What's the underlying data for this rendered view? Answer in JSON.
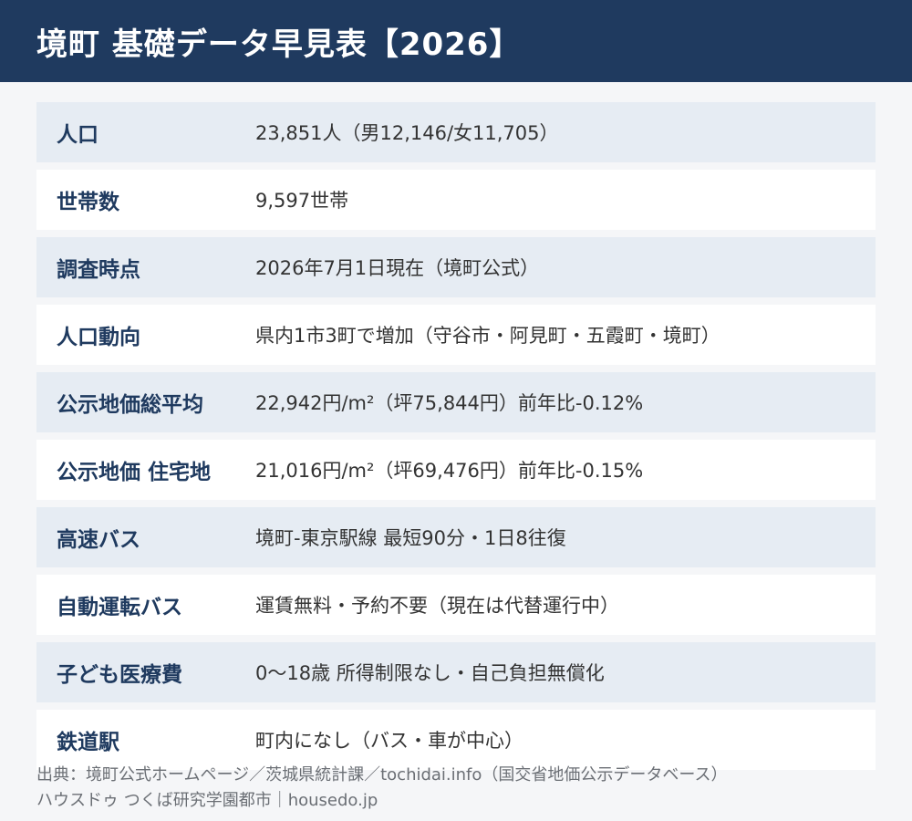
{
  "header": {
    "title": "境町 基礎データ早見表【2026】"
  },
  "rows": [
    {
      "label": "人口",
      "value": "23,851人（男12,146/女11,705）"
    },
    {
      "label": "世帯数",
      "value": "9,597世帯"
    },
    {
      "label": "調査時点",
      "value": "2026年7月1日現在（境町公式）"
    },
    {
      "label": "人口動向",
      "value": "県内1市3町で増加（守谷市・阿見町・五霞町・境町）"
    },
    {
      "label": "公示地価総平均",
      "value": "22,942円/m²（坪75,844円）前年比-0.12%"
    },
    {
      "label": "公示地価 住宅地",
      "value": "21,016円/m²（坪69,476円）前年比-0.15%"
    },
    {
      "label": "高速バス",
      "value": "境町-東京駅線 最短90分・1日8往復"
    },
    {
      "label": "自動運転バス",
      "value": "運賃無料・予約不要（現在は代替運行中）"
    },
    {
      "label": "子ども医療費",
      "value": "0〜18歳 所得制限なし・自己負担無償化"
    },
    {
      "label": "鉄道駅",
      "value": "町内になし（バス・車が中心）"
    }
  ],
  "source": {
    "line1": "出典：境町公式ホームページ／茨城県統計課／tochidai.info（国交省地価公示データベース）",
    "line2": "ハウスドゥ つくば研究学園都市｜housedo.jp"
  }
}
